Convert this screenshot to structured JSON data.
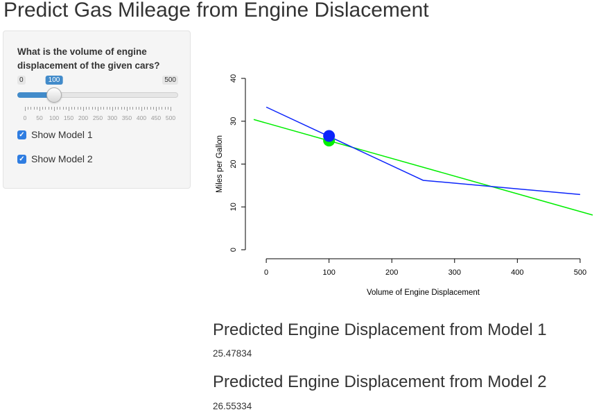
{
  "app": {
    "title": "Predict Gas Mileage from Engine Dislacement"
  },
  "sidebar": {
    "slider": {
      "label": "What is the volume of engine displacement of the given cars?",
      "min": 0,
      "max": 500,
      "value": 100,
      "min_label": "0",
      "max_label": "500",
      "value_label": "100",
      "tick_labels": [
        "0",
        "50",
        "100",
        "150",
        "200",
        "250",
        "300",
        "350",
        "400",
        "450",
        "500"
      ]
    },
    "checkboxes": [
      {
        "label": "Show Model 1",
        "checked": true
      },
      {
        "label": "Show Model 2",
        "checked": true
      }
    ]
  },
  "chart_data": {
    "type": "line",
    "xlabel": "Volume of Engine Displacement",
    "ylabel": "Miles per Gallon",
    "xlim": [
      -20,
      520
    ],
    "ylim": [
      0,
      40
    ],
    "x_ticks": [
      0,
      100,
      200,
      300,
      400,
      500
    ],
    "y_ticks": [
      0,
      10,
      20,
      30,
      40
    ],
    "grid": false,
    "series": [
      {
        "color": "#00ee00",
        "x": [
          -20,
          520
        ],
        "y": [
          30.4,
          8.1
        ]
      },
      {
        "color": "#0b24fb",
        "x": [
          0,
          250,
          500
        ],
        "y": [
          33.3,
          16.2,
          12.9
        ]
      }
    ],
    "points": [
      {
        "x": 100,
        "y": 25.47834,
        "color": "#00ee00"
      },
      {
        "x": 100,
        "y": 26.55334,
        "color": "#0b24fb"
      }
    ]
  },
  "results": [
    {
      "title": "Predicted Engine Displacement from Model 1",
      "value": "25.47834"
    },
    {
      "title": "Predicted Engine Displacement from Model 2",
      "value": "26.55334"
    }
  ]
}
